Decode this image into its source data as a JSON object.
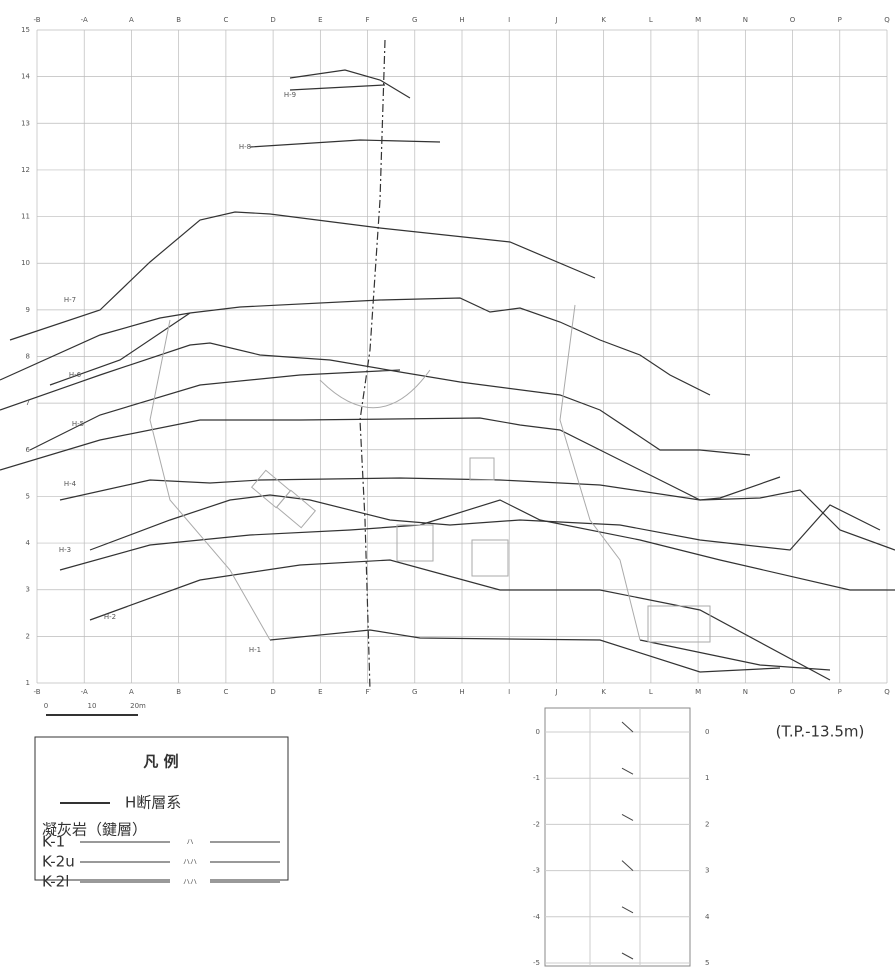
{
  "grid": {
    "columns": [
      "-B",
      "-A",
      "A",
      "B",
      "C",
      "D",
      "E",
      "F",
      "G",
      "H",
      "I",
      "J",
      "K",
      "L",
      "M",
      "N",
      "O",
      "P",
      "Q"
    ],
    "rows": [
      15,
      14,
      13,
      12,
      11,
      10,
      9,
      8,
      7,
      6,
      5,
      4,
      3,
      2,
      1
    ]
  },
  "faults": [
    {
      "label": "H-9"
    },
    {
      "label": "H-8"
    },
    {
      "label": "H-7"
    },
    {
      "label": "H-6"
    },
    {
      "label": "H-5"
    },
    {
      "label": "H-4"
    },
    {
      "label": "H-3"
    },
    {
      "label": "H-2"
    },
    {
      "label": "H-1"
    }
  ],
  "scale_bar": [
    "0",
    "10",
    "20m"
  ],
  "legend": {
    "title": "凡 例",
    "fault": "H断層系",
    "tuff_heading": "凝灰岩（鍵層）",
    "layers": [
      {
        "name": "K-1",
        "symbol": "ハ"
      },
      {
        "name": "K-2u",
        "symbol": "ハハ"
      },
      {
        "name": "K-2l",
        "symbol": "ハハ"
      }
    ]
  },
  "inset": {
    "left_labels": [
      0,
      -1,
      -2,
      -3,
      -4,
      -5
    ],
    "right_labels": [
      0,
      1,
      2,
      3,
      4,
      5
    ],
    "note": "(T.P.-13.5m)"
  }
}
